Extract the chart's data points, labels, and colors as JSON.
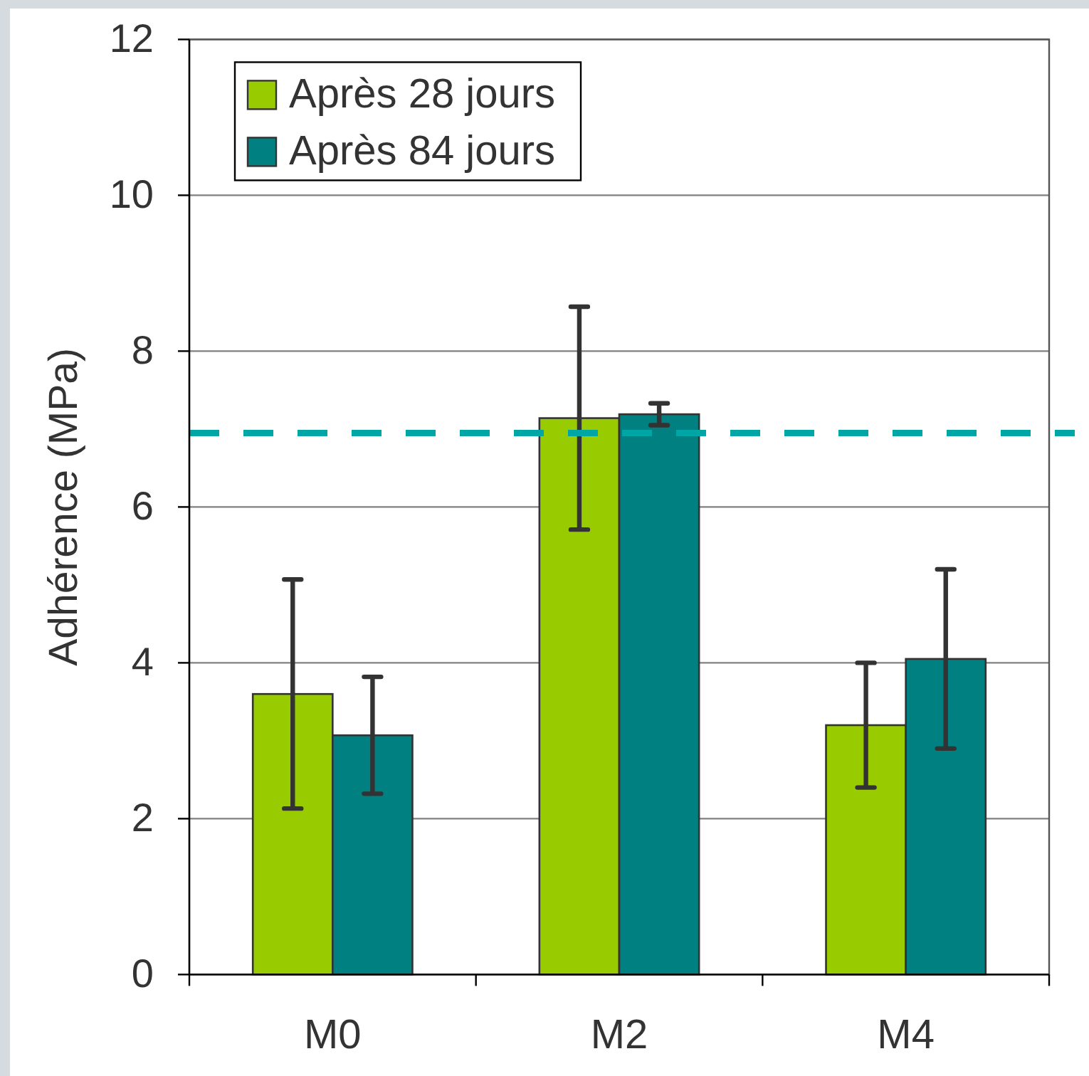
{
  "chart_data": {
    "type": "bar",
    "ylabel": "Adhérence (MPa)",
    "categories": [
      "M0",
      "M2",
      "M4"
    ],
    "series": [
      {
        "name": "Après 28 jours",
        "color": "#99cc00",
        "values": [
          3.6,
          7.14,
          3.2
        ],
        "errors": [
          1.47,
          1.43,
          0.8
        ]
      },
      {
        "name": "Après 84 jours",
        "color": "#008080",
        "values": [
          3.07,
          7.19,
          4.05
        ],
        "errors": [
          0.75,
          0.14,
          1.15
        ]
      }
    ],
    "ylim": [
      0,
      12
    ],
    "yticks": [
      0,
      2,
      4,
      6,
      8,
      10,
      12
    ],
    "grid": "y",
    "legend": "top left",
    "ref_lines": [
      {
        "axis": "y",
        "value": 6.95,
        "color": "#00a6a6",
        "line_style": "dashed"
      }
    ]
  }
}
